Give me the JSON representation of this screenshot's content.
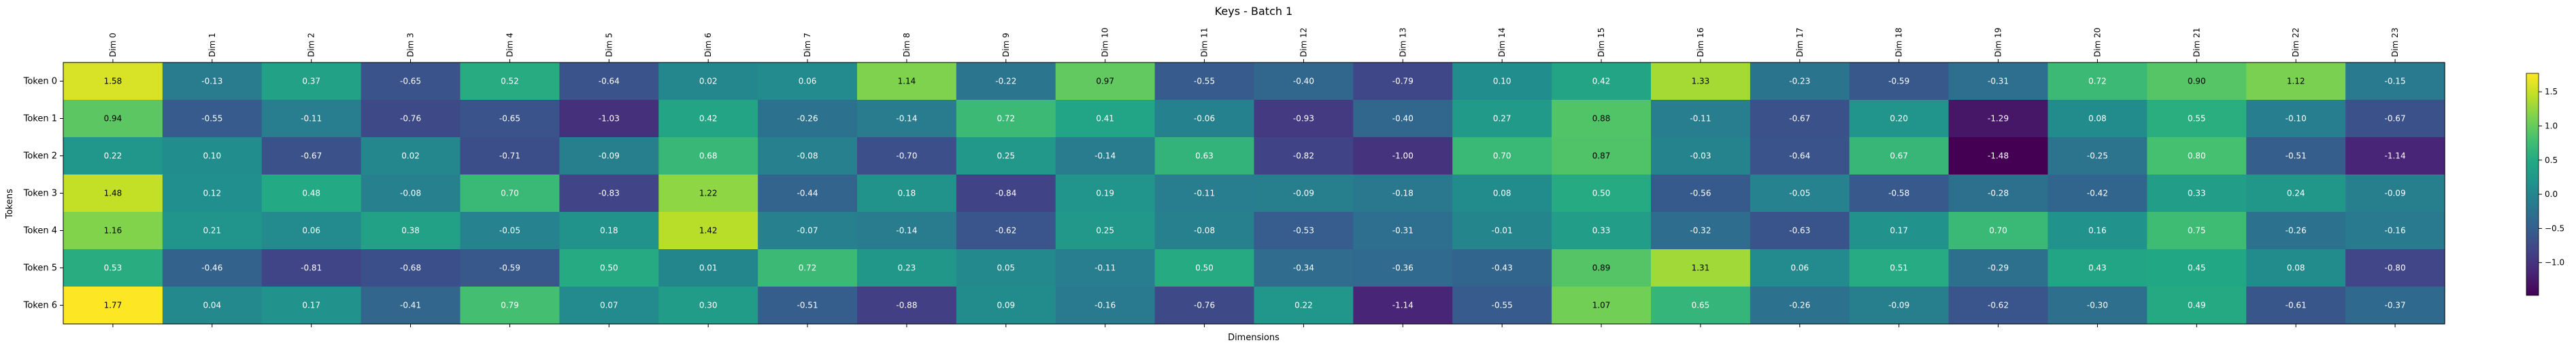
{
  "chart_data": {
    "type": "heatmap",
    "title": "Keys - Batch 1",
    "xlabel": "Dimensions",
    "ylabel": "Tokens",
    "x_labels": [
      "Dim 0",
      "Dim 1",
      "Dim 2",
      "Dim 3",
      "Dim 4",
      "Dim 5",
      "Dim 6",
      "Dim 7",
      "Dim 8",
      "Dim 9",
      "Dim 10",
      "Dim 11",
      "Dim 12",
      "Dim 13",
      "Dim 14",
      "Dim 15",
      "Dim 16",
      "Dim 17",
      "Dim 18",
      "Dim 19",
      "Dim 20",
      "Dim 21",
      "Dim 22",
      "Dim 23"
    ],
    "y_labels": [
      "Token 0",
      "Token 1",
      "Token 2",
      "Token 3",
      "Token 4",
      "Token 5",
      "Token 6"
    ],
    "values": [
      [
        1.58,
        -0.13,
        0.37,
        -0.65,
        0.52,
        -0.64,
        0.02,
        0.06,
        1.14,
        -0.22,
        0.97,
        -0.55,
        -0.4,
        -0.79,
        0.1,
        0.42,
        1.33,
        -0.23,
        -0.59,
        -0.31,
        0.72,
        0.9,
        1.12,
        -0.15
      ],
      [
        0.94,
        -0.55,
        -0.11,
        -0.76,
        -0.65,
        -1.03,
        0.42,
        -0.26,
        -0.14,
        0.72,
        0.41,
        -0.06,
        -0.93,
        -0.4,
        0.27,
        0.88,
        -0.11,
        -0.67,
        0.2,
        -1.29,
        0.08,
        0.55,
        -0.1,
        -0.67
      ],
      [
        0.22,
        0.1,
        -0.67,
        0.02,
        -0.71,
        -0.09,
        0.68,
        -0.08,
        -0.7,
        0.25,
        -0.14,
        0.63,
        -0.82,
        -1.0,
        0.7,
        0.87,
        -0.03,
        -0.64,
        0.67,
        -1.48,
        -0.25,
        0.8,
        -0.51,
        -1.14
      ],
      [
        1.48,
        0.12,
        0.48,
        -0.08,
        0.7,
        -0.83,
        1.22,
        -0.44,
        0.18,
        -0.84,
        0.19,
        -0.11,
        -0.09,
        -0.18,
        0.08,
        0.5,
        -0.56,
        -0.05,
        -0.58,
        -0.28,
        -0.42,
        0.33,
        0.24,
        -0.09
      ],
      [
        1.16,
        0.21,
        0.06,
        0.38,
        -0.05,
        0.18,
        1.42,
        -0.07,
        -0.14,
        -0.62,
        0.25,
        -0.08,
        -0.53,
        -0.31,
        -0.01,
        0.33,
        -0.32,
        -0.63,
        0.17,
        0.7,
        0.16,
        0.75,
        -0.26,
        -0.16
      ],
      [
        0.53,
        -0.46,
        -0.81,
        -0.68,
        -0.59,
        0.5,
        0.01,
        0.72,
        0.23,
        0.05,
        -0.11,
        0.5,
        -0.34,
        -0.36,
        -0.43,
        0.89,
        1.31,
        0.06,
        0.51,
        -0.29,
        0.43,
        0.45,
        0.08,
        -0.8
      ],
      [
        1.77,
        0.04,
        0.17,
        -0.41,
        0.79,
        0.07,
        0.3,
        -0.51,
        -0.88,
        0.09,
        -0.16,
        -0.76,
        0.22,
        -1.14,
        -0.55,
        1.07,
        0.65,
        -0.26,
        -0.09,
        -0.62,
        -0.3,
        0.49,
        -0.61,
        -0.37
      ]
    ],
    "value_format": "2 decimals",
    "colormap": "viridis",
    "vmin": -1.48,
    "vmax": 1.77,
    "colorbar_ticks": [
      -1.0,
      -0.5,
      0.0,
      0.5,
      1.0,
      1.5
    ],
    "colorbar_tick_labels": [
      "−1.0",
      "−0.5",
      "0.0",
      "0.5",
      "1.0",
      "1.5"
    ],
    "text_color_light": "#ffffff",
    "text_color_dark": "#000000",
    "grid": false
  }
}
